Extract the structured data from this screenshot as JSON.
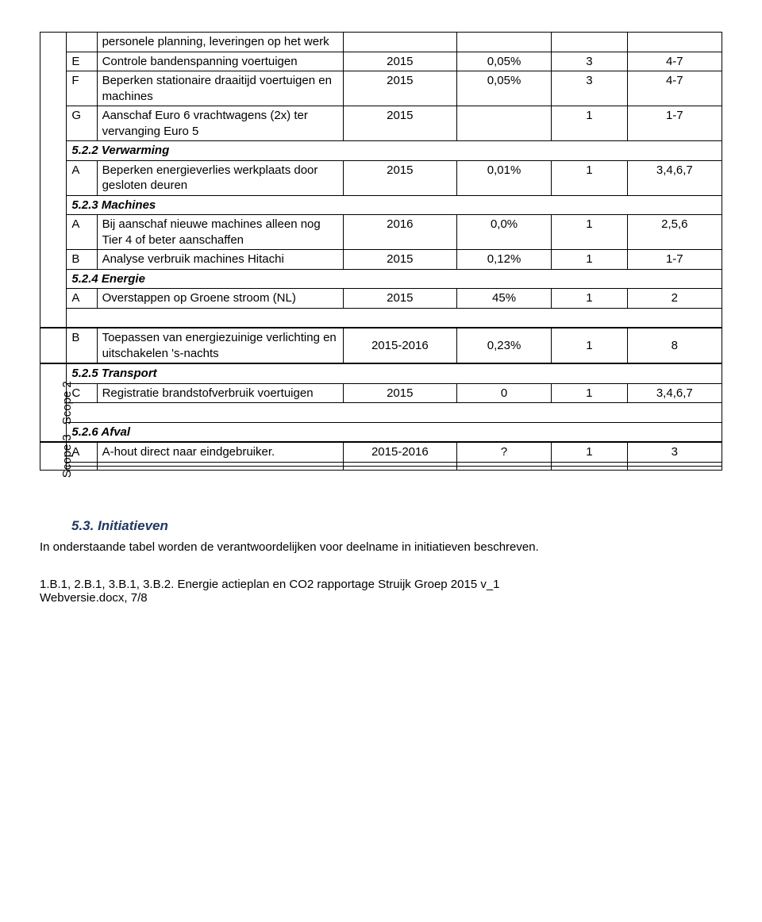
{
  "block1": {
    "rows": [
      {
        "letter": "",
        "desc": "personele planning, leveringen op het werk",
        "year": "",
        "pct": "",
        "cnt": "",
        "ref": ""
      },
      {
        "letter": "E",
        "desc": "Controle bandenspanning voertuigen",
        "year": "2015",
        "pct": "0,05%",
        "cnt": "3",
        "ref": "4-7"
      },
      {
        "letter": "F",
        "desc": "Beperken stationaire draaitijd voertuigen en machines",
        "year": "2015",
        "pct": "0,05%",
        "cnt": "3",
        "ref": "4-7"
      },
      {
        "letter": "G",
        "desc": "Aanschaf Euro 6 vrachtwagens (2x) ter vervanging Euro 5",
        "year": "2015",
        "pct": "",
        "cnt": "1",
        "ref": "1-7"
      }
    ],
    "heading522": "5.2.2   Verwarming",
    "rows2": [
      {
        "letter": "A",
        "desc": "Beperken energieverlies werkplaats door gesloten deuren",
        "year": "2015",
        "pct": "0,01%",
        "cnt": "1",
        "ref": "3,4,6,7"
      }
    ],
    "heading523": "5.2.3   Machines",
    "rows3": [
      {
        "letter": "A",
        "desc": "Bij aanschaf nieuwe machines alleen nog Tier 4 of beter aanschaffen",
        "year": "2016",
        "pct": "0,0%",
        "cnt": "1",
        "ref": "2,5,6"
      },
      {
        "letter": "B",
        "desc": "Analyse verbruik machines Hitachi",
        "year": "2015",
        "pct": "0,12%",
        "cnt": "1",
        "ref": "1-7"
      }
    ],
    "heading524": "5.2.4   Energie",
    "rows4": [
      {
        "letter": "A",
        "desc": "Overstappen op Groene stroom (NL)",
        "year": "2015",
        "pct": "45%",
        "cnt": "1",
        "ref": "2"
      }
    ]
  },
  "block2": {
    "rowB": {
      "letter": "B",
      "desc": "Toepassen van energiezuinige verlichting en uitschakelen 's-nachts",
      "year": "2015-2016",
      "pct": "0,23%",
      "cnt": "1",
      "ref": "8"
    }
  },
  "block3": {
    "scope2": "Scope 2",
    "heading525": "5.2.5   Transport",
    "rowC": {
      "letter": "C",
      "desc": "Registratie brandstofverbruik voertuigen",
      "year": "2015",
      "pct": "0",
      "cnt": "1",
      "ref": "3,4,6,7"
    },
    "heading526": "5.2.6   Afval"
  },
  "block4": {
    "scope3": "Scope 3",
    "rowA": {
      "letter": "A",
      "desc": "A-hout direct naar eindgebruiker.",
      "year": "2015-2016",
      "pct": "?",
      "cnt": "1",
      "ref": "3"
    }
  },
  "section53": {
    "heading": "5.3. Initiatieven",
    "body": "In onderstaande tabel worden de verantwoordelijken voor deelname in initiatieven beschreven."
  },
  "footer": {
    "line1": "1.B.1, 2.B.1, 3.B.1, 3.B.2. Energie actieplan en CO2 rapportage Struijk Groep 2015 v_1",
    "line2": "Webversie.docx, 7/8"
  }
}
